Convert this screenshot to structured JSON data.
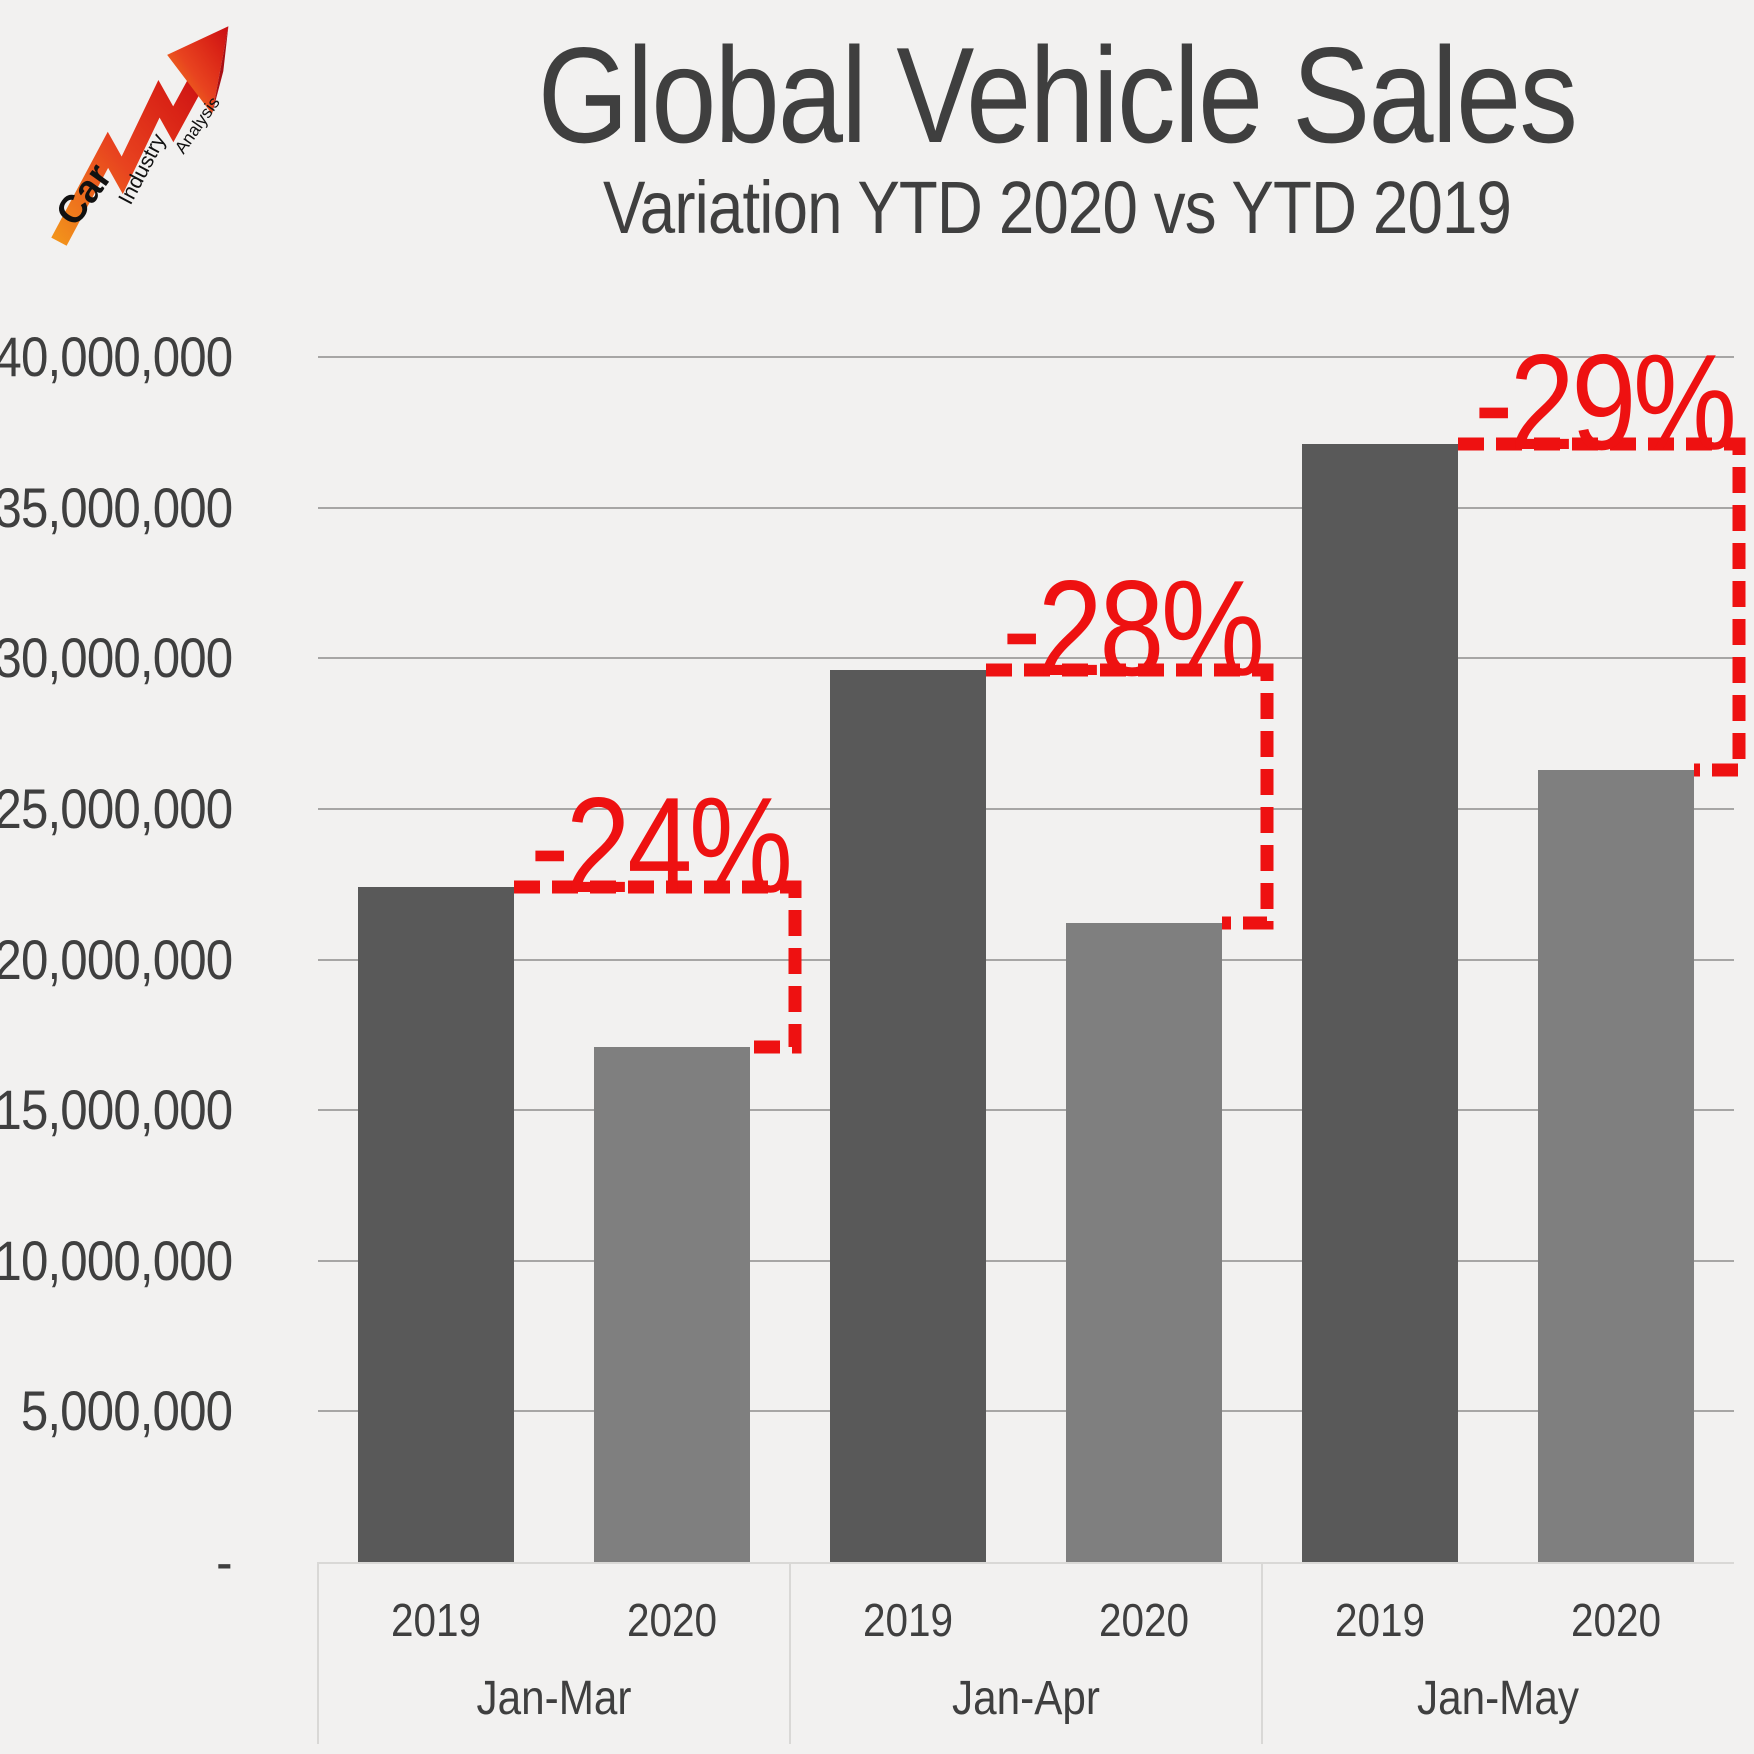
{
  "page": {
    "background_color": "#f2f1f0",
    "text_color": "#3f3f3f"
  },
  "logo": {
    "word1": "Car",
    "word2": "Industry",
    "word3": "Analysis",
    "arrow_gradient_bottom": "#f2921b",
    "arrow_gradient_mid": "#e8431f",
    "arrow_gradient_top": "#c90f14"
  },
  "chart_data": {
    "type": "bar",
    "title": "Global Vehicle Sales",
    "subtitle": "Variation YTD 2020 vs YTD 2019",
    "categories": [
      "Jan-Mar",
      "Jan-Apr",
      "Jan-May"
    ],
    "series": [
      {
        "name": "2019",
        "color": "#595959",
        "values": [
          22400000,
          29600000,
          37100000
        ]
      },
      {
        "name": "2020",
        "color": "#7f7f7f",
        "values": [
          17100000,
          21200000,
          26300000
        ]
      }
    ],
    "annotations": [
      {
        "category": "Jan-Mar",
        "label": "-24%"
      },
      {
        "category": "Jan-Apr",
        "label": "-28%"
      },
      {
        "category": "Jan-May",
        "label": "-29%"
      }
    ],
    "annotation_color": "#ee1111",
    "ylim": [
      0,
      40000000
    ],
    "y_tick_step": 5000000,
    "y_tick_labels": [
      "-",
      "5,000,000",
      "10,000,000",
      "15,000,000",
      "20,000,000",
      "25,000,000",
      "30,000,000",
      "35,000,000",
      "40,000,000"
    ],
    "grid": true,
    "legend": "none",
    "gridline_color": "#a7a6a5",
    "axis_line_color": "#d9d8d6"
  }
}
